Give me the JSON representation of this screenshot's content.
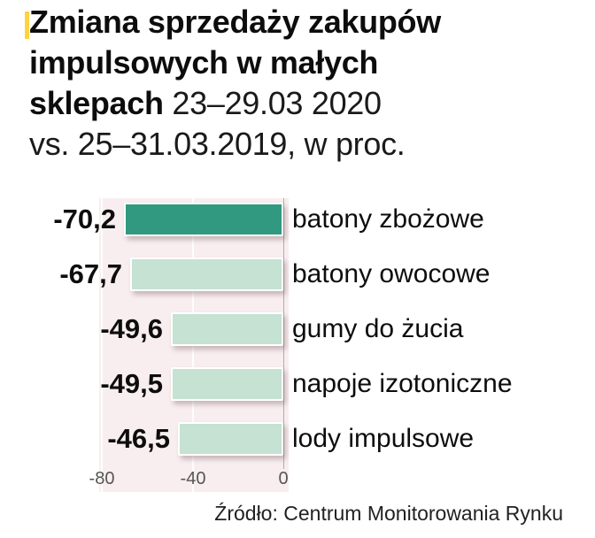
{
  "title": {
    "line1": "Zmiana sprzedaży zakupów",
    "line2": "impulsowych w małych",
    "line3_bold": "sklepach",
    "line3_regular": "23–29.03 2020",
    "line4": "vs. 25–31.03.2019, w proc."
  },
  "chart_data": {
    "type": "bar",
    "orientation": "horizontal",
    "title": "Zmiana sprzedaży zakupów impulsowych w małych sklepach 23–29.03 2020 vs. 25–31.03.2019, w proc.",
    "categories": [
      "batony zbożowe",
      "batony owocowe",
      "gumy do żucia",
      "napoje izotoniczne",
      "lody impulsowe"
    ],
    "values": [
      -70.2,
      -67.7,
      -49.6,
      -49.5,
      -46.5
    ],
    "rows": [
      {
        "value": -70.2,
        "value_label": "-70,2",
        "label": "batony zbożowe",
        "emphasis": true
      },
      {
        "value": -67.7,
        "value_label": "-67,7",
        "label": "batony owocowe",
        "emphasis": false
      },
      {
        "value": -49.6,
        "value_label": "-49,6",
        "label": "gumy do żucia",
        "emphasis": false
      },
      {
        "value": -49.5,
        "value_label": "-49,5",
        "label": "napoje izotoniczne",
        "emphasis": false
      },
      {
        "value": -46.5,
        "value_label": "-46,5",
        "label": "lody impulsowe",
        "emphasis": false
      }
    ],
    "xlim": [
      -80,
      0
    ],
    "x_ticks": [
      "-80",
      "-40",
      "0"
    ],
    "grid": "off",
    "legend": "none",
    "source": "Źródło: Centrum Monitorowania Rynku",
    "colors": {
      "bar_highlight": "#31997f",
      "bar_normal": "#c5e2d3",
      "plot_bg": "#f8eef0",
      "accent": "#ffd340",
      "zero_line": "#b3abae"
    }
  }
}
